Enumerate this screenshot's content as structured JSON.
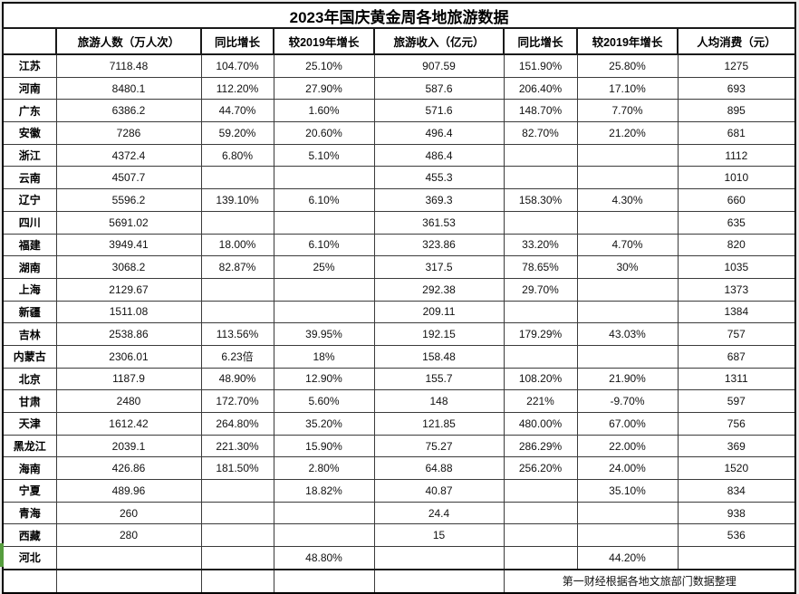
{
  "title": "2023年国庆黄金周各地旅游数据",
  "columns": [
    "旅游人数（万人次）",
    "同比增长",
    "较2019年增长",
    "旅游收入（亿元）",
    "同比增长",
    "较2019年增长",
    "人均消费（元）"
  ],
  "rows": [
    {
      "province": "江苏",
      "values": [
        "7118.48",
        "104.70%",
        "25.10%",
        "907.59",
        "151.90%",
        "25.80%",
        "1275"
      ]
    },
    {
      "province": "河南",
      "values": [
        "8480.1",
        "112.20%",
        "27.90%",
        "587.6",
        "206.40%",
        "17.10%",
        "693"
      ]
    },
    {
      "province": "广东",
      "values": [
        "6386.2",
        "44.70%",
        "1.60%",
        "571.6",
        "148.70%",
        "7.70%",
        "895"
      ]
    },
    {
      "province": "安徽",
      "values": [
        "7286",
        "59.20%",
        "20.60%",
        "496.4",
        "82.70%",
        "21.20%",
        "681"
      ]
    },
    {
      "province": "浙江",
      "values": [
        "4372.4",
        "6.80%",
        "5.10%",
        "486.4",
        "",
        "",
        "1112"
      ]
    },
    {
      "province": "云南",
      "values": [
        "4507.7",
        "",
        "",
        "455.3",
        "",
        "",
        "1010"
      ]
    },
    {
      "province": "辽宁",
      "values": [
        "5596.2",
        "139.10%",
        "6.10%",
        "369.3",
        "158.30%",
        "4.30%",
        "660"
      ]
    },
    {
      "province": "四川",
      "values": [
        "5691.02",
        "",
        "",
        "361.53",
        "",
        "",
        "635"
      ]
    },
    {
      "province": "福建",
      "values": [
        "3949.41",
        "18.00%",
        "6.10%",
        "323.86",
        "33.20%",
        "4.70%",
        "820"
      ]
    },
    {
      "province": "湖南",
      "values": [
        "3068.2",
        "82.87%",
        "25%",
        "317.5",
        "78.65%",
        "30%",
        "1035"
      ]
    },
    {
      "province": "上海",
      "values": [
        "2129.67",
        "",
        "",
        "292.38",
        "29.70%",
        "",
        "1373"
      ]
    },
    {
      "province": "新疆",
      "values": [
        "1511.08",
        "",
        "",
        "209.11",
        "",
        "",
        "1384"
      ]
    },
    {
      "province": "吉林",
      "values": [
        "2538.86",
        "113.56%",
        "39.95%",
        "192.15",
        "179.29%",
        "43.03%",
        "757"
      ]
    },
    {
      "province": "内蒙古",
      "values": [
        "2306.01",
        "6.23倍",
        "18%",
        "158.48",
        "",
        "",
        "687"
      ]
    },
    {
      "province": "北京",
      "values": [
        "1187.9",
        "48.90%",
        "12.90%",
        "155.7",
        "108.20%",
        "21.90%",
        "1311"
      ]
    },
    {
      "province": "甘肃",
      "values": [
        "2480",
        "172.70%",
        "5.60%",
        "148",
        "221%",
        "-9.70%",
        "597"
      ]
    },
    {
      "province": "天津",
      "values": [
        "1612.42",
        "264.80%",
        "35.20%",
        "121.85",
        "480.00%",
        "67.00%",
        "756"
      ]
    },
    {
      "province": "黑龙江",
      "values": [
        "2039.1",
        "221.30%",
        "15.90%",
        "75.27",
        "286.29%",
        "22.00%",
        "369"
      ]
    },
    {
      "province": "海南",
      "values": [
        "426.86",
        "181.50%",
        "2.80%",
        "64.88",
        "256.20%",
        "24.00%",
        "1520"
      ]
    },
    {
      "province": "宁夏",
      "values": [
        "489.96",
        "",
        "18.82%",
        "40.87",
        "",
        "35.10%",
        "834"
      ]
    },
    {
      "province": "青海",
      "values": [
        "260",
        "",
        "",
        "24.4",
        "",
        "",
        "938"
      ]
    },
    {
      "province": "西藏",
      "values": [
        "280",
        "",
        "",
        "15",
        "",
        "",
        "536"
      ]
    },
    {
      "province": "河北",
      "values": [
        "",
        "",
        "48.80%",
        "",
        "",
        "44.20%",
        ""
      ]
    }
  ],
  "footer": {
    "empty_cells": [
      "",
      "",
      "",
      "",
      ""
    ],
    "note": "第一财经根据各地文旅部门数据整理"
  },
  "colors": {
    "cell_background": "#ffffff",
    "grid_line": "#3b3b3b",
    "outer_border": "#000000",
    "active_cell_green": "#569d3e",
    "sheet_background": "#ececec"
  }
}
